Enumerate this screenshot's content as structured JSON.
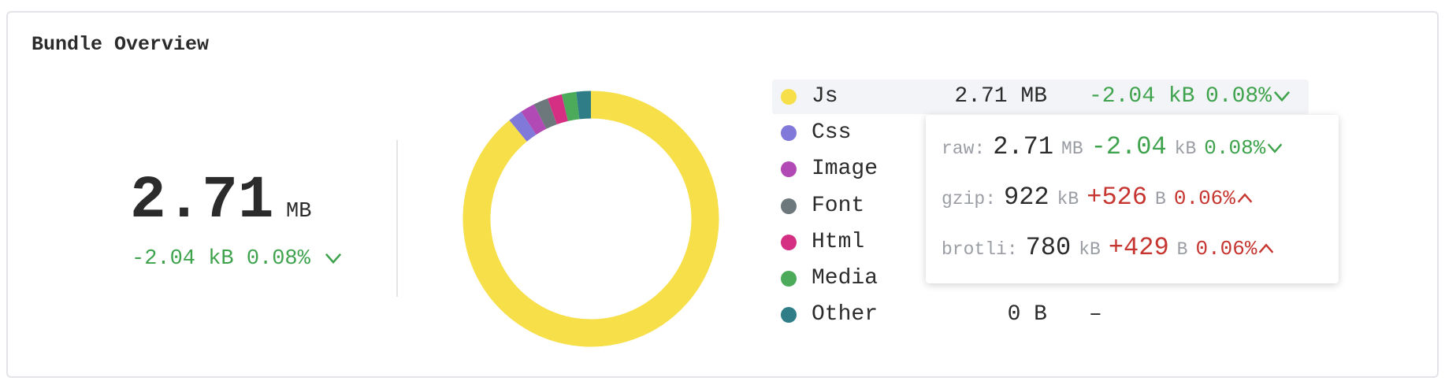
{
  "header": {
    "title": "Bundle Overview"
  },
  "summary": {
    "value": "2.71",
    "unit": "MB",
    "diff": "-2.04 kB",
    "percent": "0.08%",
    "trend": "down"
  },
  "legend": [
    {
      "name": "Js",
      "color": "#f6df48",
      "size": "2.71 MB",
      "diff": "-2.04 kB",
      "percent": "0.08%",
      "trend": "down"
    },
    {
      "name": "Css",
      "color": "#8179d9"
    },
    {
      "name": "Image",
      "color": "#b14ab5"
    },
    {
      "name": "Font",
      "color": "#6d787c"
    },
    {
      "name": "Html",
      "color": "#d52f84"
    },
    {
      "name": "Media",
      "color": "#4bab5b"
    },
    {
      "name": "Other",
      "color": "#2f7d86",
      "size": "0 B",
      "diff": "–"
    }
  ],
  "tooltip": [
    {
      "label": "raw:",
      "value": "2.71",
      "unit": "MB",
      "diff": "-2.04",
      "diff_unit": "kB",
      "percent": "0.08%",
      "trend": "down"
    },
    {
      "label": "gzip:",
      "value": "922",
      "unit": "kB",
      "diff": "+526",
      "diff_unit": "B",
      "percent": "0.06%",
      "trend": "up"
    },
    {
      "label": "brotli:",
      "value": "780",
      "unit": "kB",
      "diff": "+429",
      "diff_unit": "B",
      "percent": "0.06%",
      "trend": "up"
    }
  ]
}
